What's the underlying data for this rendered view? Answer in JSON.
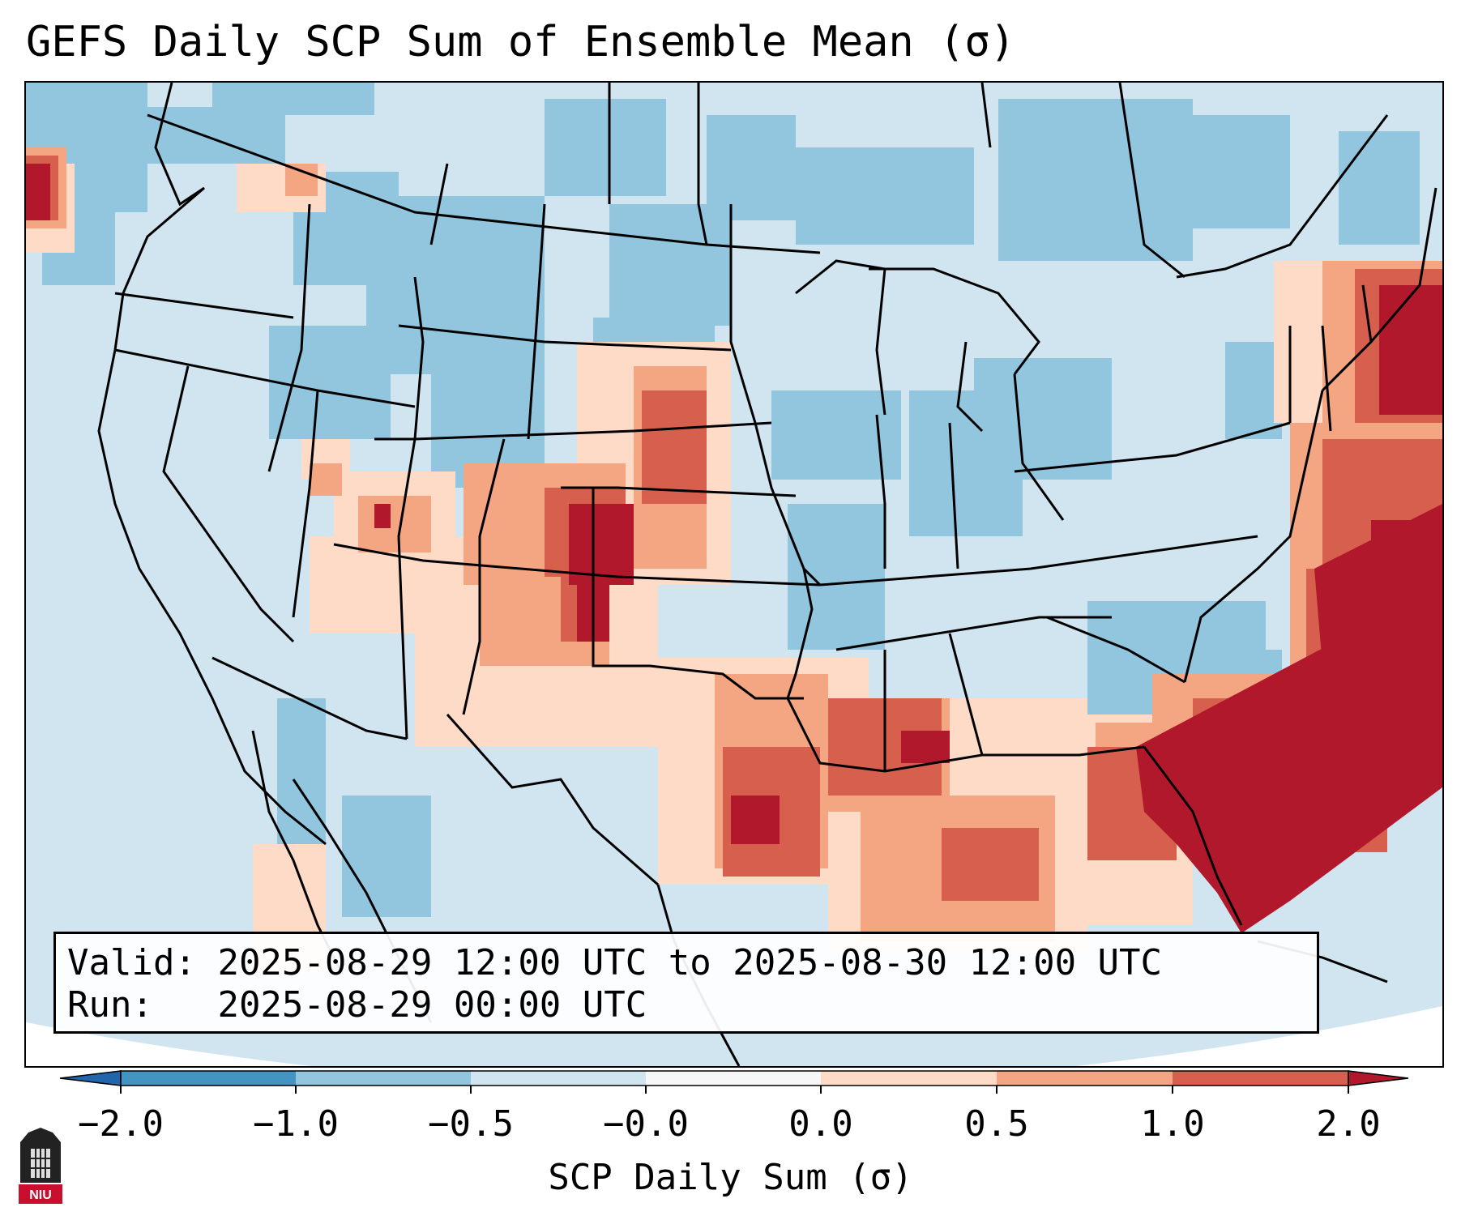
{
  "title": "GEFS Daily SCP Sum of Ensemble Mean (σ)",
  "info": {
    "valid_label": "Valid:",
    "valid_value": "2025-08-29 12:00 UTC to 2025-08-30 12:00 UTC",
    "run_label": "Run:",
    "run_value": "2025-08-29 00:00 UTC"
  },
  "colorbar": {
    "title": "SCP Daily Sum (σ)",
    "ticks": [
      "−2.0",
      "−1.0",
      "−0.5",
      "−0.0",
      "0.0",
      "0.5",
      "1.0",
      "2.0"
    ],
    "bins": [
      {
        "color": "#2166ac"
      },
      {
        "color": "#4393c3"
      },
      {
        "color": "#92c5de"
      },
      {
        "color": "#d1e5f0"
      },
      {
        "color": "#f7f7f7"
      },
      {
        "color": "#fddbc7"
      },
      {
        "color": "#f4a582"
      },
      {
        "color": "#d6604d"
      },
      {
        "color": "#b2182b"
      }
    ]
  },
  "colors": {
    "background_field": "#d1e5f0",
    "light_blue_patch": "#92c5de",
    "peach": "#fddbc7",
    "salmon": "#f4a582",
    "red": "#d6604d",
    "dark_red": "#b2182b",
    "border": "#000000"
  },
  "logo_text": "NIU"
}
